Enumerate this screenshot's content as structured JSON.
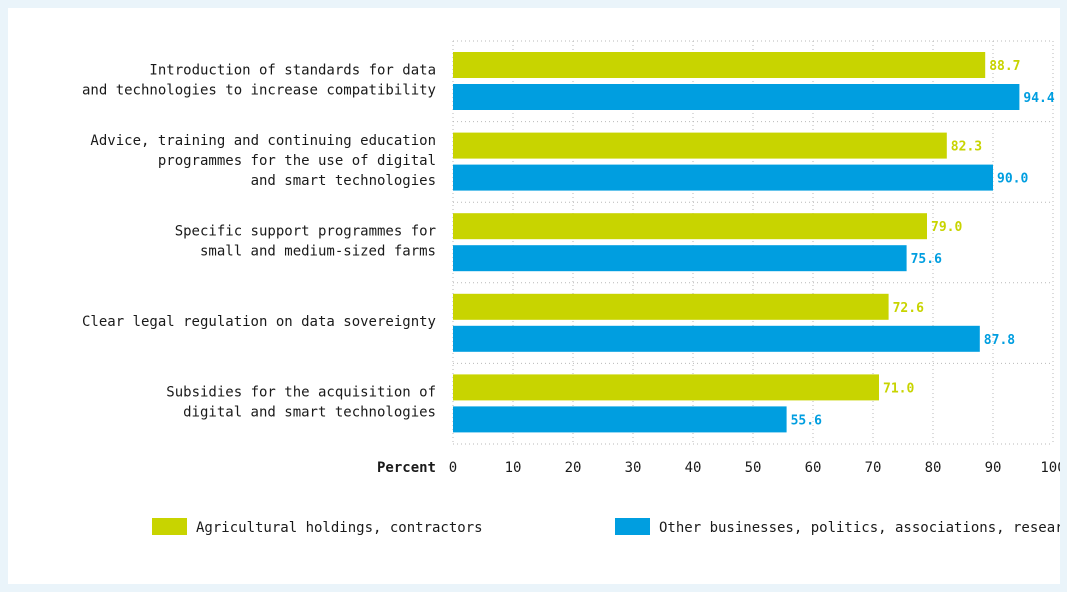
{
  "chart_data": {
    "type": "bar",
    "orientation": "horizontal",
    "title": "",
    "xlabel": "Percent",
    "ylabel": "",
    "xlim": [
      0,
      100
    ],
    "x_ticks": [
      0,
      10,
      20,
      30,
      40,
      50,
      60,
      70,
      80,
      90,
      100
    ],
    "grid": true,
    "legend_position": "bottom",
    "categories": [
      [
        "Introduction of standards for data",
        "and technologies to increase compatibility"
      ],
      [
        "Advice, training and continuing education",
        "programmes for the use of digital",
        "and smart technologies"
      ],
      [
        "Specific support programmes for",
        "small and medium-sized farms"
      ],
      [
        "Clear legal regulation on data sovereignty"
      ],
      [
        "Subsidies for the acquisition of",
        "digital and smart technologies"
      ]
    ],
    "series": [
      {
        "name": "Agricultural holdings, contractors",
        "color": "#c8d400",
        "values": [
          88.7,
          82.3,
          79.0,
          72.6,
          71.0
        ]
      },
      {
        "name": "Other businesses, politics, associations, research",
        "color": "#009ee0",
        "values": [
          94.4,
          90.0,
          75.6,
          87.8,
          55.6
        ]
      }
    ]
  }
}
